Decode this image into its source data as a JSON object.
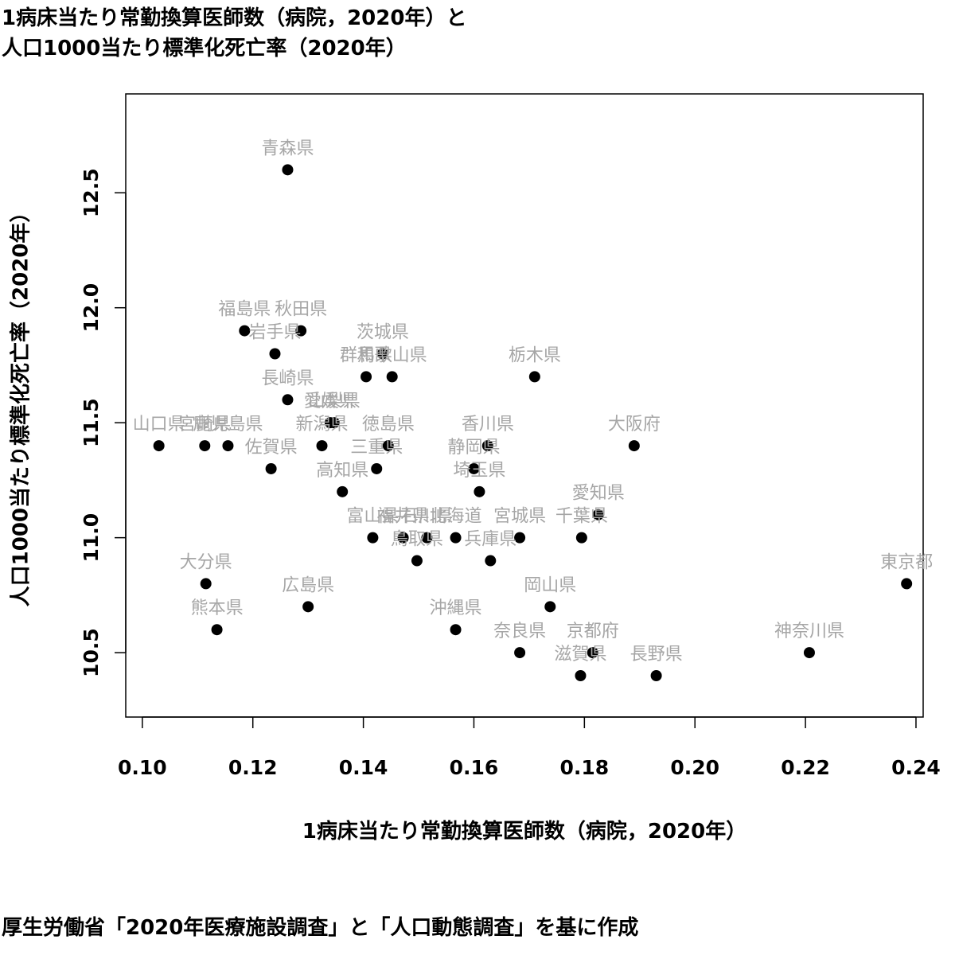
{
  "chart_data": {
    "type": "scatter",
    "title_lines": [
      "1病床当たり常勤換算医師数（病院，2020年）と",
      "人口1000当たり標準化死亡率（2020年）"
    ],
    "xlabel": "1病床当たり常勤換算医師数（病院，2020年）",
    "ylabel": "人口1000当たり標準化死亡率（2020年）",
    "source": "厚生労働省「2020年医療施設調査」と「人口動態調査」を基に作成",
    "xlim": [
      0.097,
      0.2413
    ],
    "ylim": [
      10.22,
      12.93
    ],
    "xticks": [
      0.1,
      0.12,
      0.14,
      0.16,
      0.18,
      0.2,
      0.22,
      0.24
    ],
    "xtick_labels": [
      "0.10",
      "0.12",
      "0.14",
      "0.16",
      "0.18",
      "0.20",
      "0.22",
      "0.24"
    ],
    "yticks": [
      10.5,
      11.0,
      11.5,
      12.0,
      12.5
    ],
    "ytick_labels": [
      "10.5",
      "11.0",
      "11.5",
      "12.0",
      "12.5"
    ],
    "grid": false,
    "marker_color": "#000000",
    "label_color": "#a6a6a6",
    "points": [
      {
        "label": "青森県",
        "x": 0.1263,
        "y": 12.6
      },
      {
        "label": "福島県",
        "x": 0.1185,
        "y": 11.9
      },
      {
        "label": "秋田県",
        "x": 0.1287,
        "y": 11.9
      },
      {
        "label": "岩手県",
        "x": 0.124,
        "y": 11.8
      },
      {
        "label": "茨城県",
        "x": 0.1435,
        "y": 11.8
      },
      {
        "label": "群馬県",
        "x": 0.1405,
        "y": 11.7
      },
      {
        "label": "和歌山県",
        "x": 0.1452,
        "y": 11.7
      },
      {
        "label": "栃木県",
        "x": 0.171,
        "y": 11.7
      },
      {
        "label": "長崎県",
        "x": 0.1263,
        "y": 11.6
      },
      {
        "label": "愛媛県",
        "x": 0.134,
        "y": 11.5
      },
      {
        "label": "山梨県",
        "x": 0.1347,
        "y": 11.5
      },
      {
        "label": "山口県",
        "x": 0.103,
        "y": 11.4
      },
      {
        "label": "宮崎県",
        "x": 0.1113,
        "y": 11.4
      },
      {
        "label": "鹿児島県",
        "x": 0.1155,
        "y": 11.4
      },
      {
        "label": "新潟県",
        "x": 0.1325,
        "y": 11.4
      },
      {
        "label": "徳島県",
        "x": 0.1445,
        "y": 11.4
      },
      {
        "label": "香川県",
        "x": 0.1625,
        "y": 11.4
      },
      {
        "label": "大阪府",
        "x": 0.189,
        "y": 11.4
      },
      {
        "label": "佐賀県",
        "x": 0.1233,
        "y": 11.3
      },
      {
        "label": "三重県",
        "x": 0.1424,
        "y": 11.3
      },
      {
        "label": "静岡県",
        "x": 0.16,
        "y": 11.3
      },
      {
        "label": "高知県",
        "x": 0.1362,
        "y": 11.2
      },
      {
        "label": "埼玉県",
        "x": 0.161,
        "y": 11.2
      },
      {
        "label": "愛知県",
        "x": 0.1825,
        "y": 11.1
      },
      {
        "label": "富山県",
        "x": 0.1417,
        "y": 11.0
      },
      {
        "label": "福井県",
        "x": 0.1472,
        "y": 11.0
      },
      {
        "label": "石川県",
        "x": 0.1515,
        "y": 11.0
      },
      {
        "label": "北海道",
        "x": 0.1567,
        "y": 11.0
      },
      {
        "label": "宮城県",
        "x": 0.1683,
        "y": 11.0
      },
      {
        "label": "千葉県",
        "x": 0.1795,
        "y": 11.0
      },
      {
        "label": "鳥取県",
        "x": 0.1497,
        "y": 10.9
      },
      {
        "label": "兵庫県",
        "x": 0.163,
        "y": 10.9
      },
      {
        "label": "大分県",
        "x": 0.1115,
        "y": 10.8
      },
      {
        "label": "東京都",
        "x": 0.2383,
        "y": 10.8
      },
      {
        "label": "広島県",
        "x": 0.13,
        "y": 10.7
      },
      {
        "label": "岡山県",
        "x": 0.1738,
        "y": 10.7
      },
      {
        "label": "熊本県",
        "x": 0.1135,
        "y": 10.6
      },
      {
        "label": "沖縄県",
        "x": 0.1567,
        "y": 10.6
      },
      {
        "label": "奈良県",
        "x": 0.1683,
        "y": 10.5
      },
      {
        "label": "京都府",
        "x": 0.1815,
        "y": 10.5
      },
      {
        "label": "神奈川県",
        "x": 0.2207,
        "y": 10.5
      },
      {
        "label": "滋賀県",
        "x": 0.1793,
        "y": 10.4
      },
      {
        "label": "長野県",
        "x": 0.193,
        "y": 10.4
      }
    ]
  }
}
